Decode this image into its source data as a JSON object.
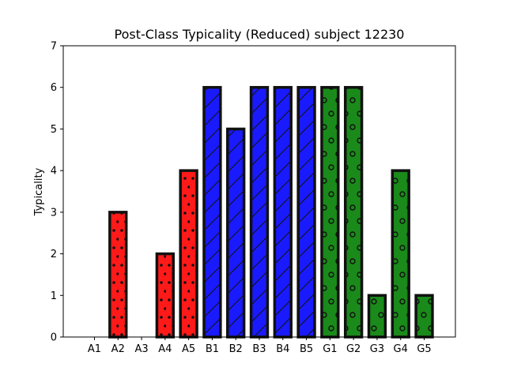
{
  "chart_data": {
    "type": "bar",
    "title": "Post-Class Typicality (Reduced) subject 12230",
    "xlabel": "",
    "ylabel": "Typicality",
    "ylim": [
      0,
      7
    ],
    "yticks": [
      0,
      1,
      2,
      3,
      4,
      5,
      6,
      7
    ],
    "grid": false,
    "categories": [
      "A1",
      "A2",
      "A3",
      "A4",
      "A5",
      "B1",
      "B2",
      "B3",
      "B4",
      "B5",
      "G1",
      "G2",
      "G3",
      "G4",
      "G5"
    ],
    "values": [
      0,
      3,
      0,
      2,
      4,
      6,
      5,
      6,
      6,
      6,
      6,
      6,
      1,
      4,
      1
    ],
    "groups": [
      {
        "prefix": "A",
        "color": "#ff1a1a",
        "hatch": "dots"
      },
      {
        "prefix": "B",
        "color": "#1a1aff",
        "hatch": "diagonal"
      },
      {
        "prefix": "G",
        "color": "#1a8a1a",
        "hatch": "circles"
      }
    ],
    "edge_color": "#111111"
  }
}
